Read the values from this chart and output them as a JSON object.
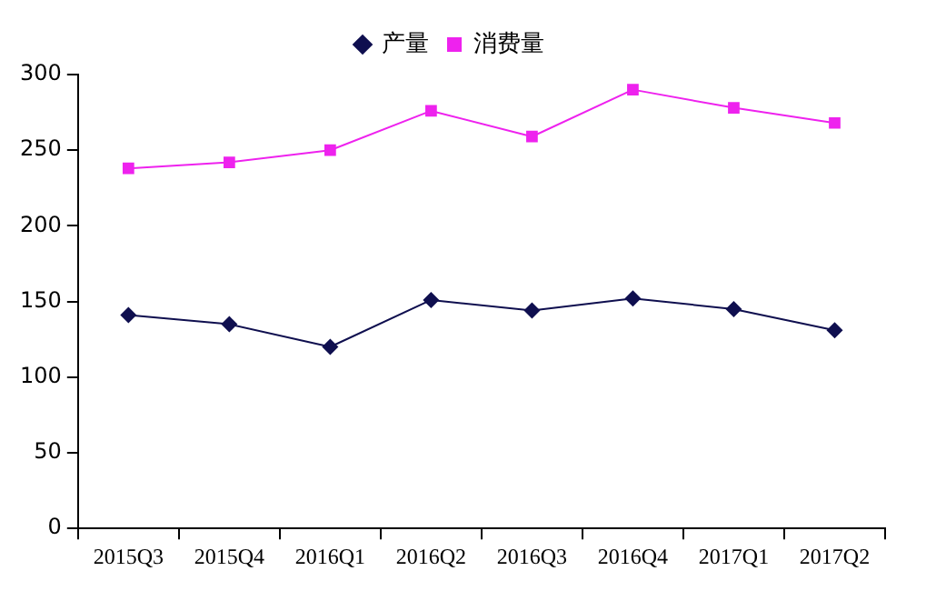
{
  "chart_data": {
    "type": "line",
    "categories": [
      "2015Q3",
      "2015Q4",
      "2016Q1",
      "2016Q2",
      "2016Q3",
      "2016Q4",
      "2017Q1",
      "2017Q2"
    ],
    "series": [
      {
        "name": "产量",
        "color": "#0f0f4f",
        "marker": "diamond",
        "values": [
          141,
          135,
          120,
          151,
          144,
          152,
          145,
          131
        ]
      },
      {
        "name": "消费量",
        "color": "#ee22ee",
        "marker": "square",
        "values": [
          238,
          242,
          250,
          276,
          259,
          290,
          278,
          268
        ]
      }
    ],
    "ylim": [
      0,
      300
    ],
    "yticks": [
      0,
      50,
      100,
      150,
      200,
      250,
      300
    ],
    "grid": false,
    "legend": "top"
  }
}
